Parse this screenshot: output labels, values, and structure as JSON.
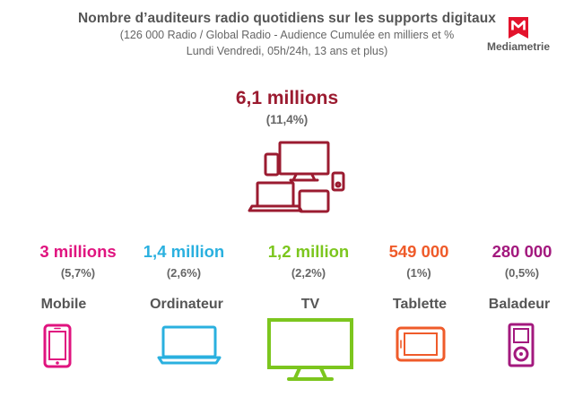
{
  "header": {
    "title": "Nombre d’auditeurs radio quotidiens sur les supports digitaux",
    "subtitle_line1": "(126 000 Radio / Global Radio - Audience Cumulée en milliers et %",
    "subtitle_line2": "Lundi Vendredi, 05h/24h, 13 ans et plus)"
  },
  "logo": {
    "text": "Mediametrie",
    "icon": "mediametrie-logo"
  },
  "total": {
    "value_label": "6,1 millions",
    "pct_label": "(11,4%)",
    "icon": "multi-device-icon"
  },
  "colors": {
    "total": "#9b1b30",
    "mobile": "#e0147f",
    "ordinateur": "#2ab0df",
    "tv": "#7cc61e",
    "tablette": "#ef5b2a",
    "baladeur": "#a3197e"
  },
  "chart_data": {
    "type": "table",
    "title": "Nombre d’auditeurs radio quotidiens sur les supports digitaux",
    "total": {
      "value": 6.1,
      "unit": "millions",
      "pct": 11.4
    },
    "categories": [
      "Mobile",
      "Ordinateur",
      "TV",
      "Tablette",
      "Baladeur"
    ],
    "values": [
      3000000,
      1400000,
      1200000,
      549000,
      280000
    ],
    "pct": [
      5.7,
      2.6,
      2.2,
      1,
      0.5
    ],
    "value_labels": [
      "3 millions",
      "1,4 million",
      "1,2 million",
      "549 000",
      "280 000"
    ],
    "pct_labels": [
      "(5,7%)",
      "(2,6%)",
      "(2,2%)",
      "(1%)",
      "(0,5%)"
    ],
    "icons": [
      "smartphone-icon",
      "laptop-icon",
      "tv-icon",
      "tablet-icon",
      "music-player-icon"
    ]
  }
}
